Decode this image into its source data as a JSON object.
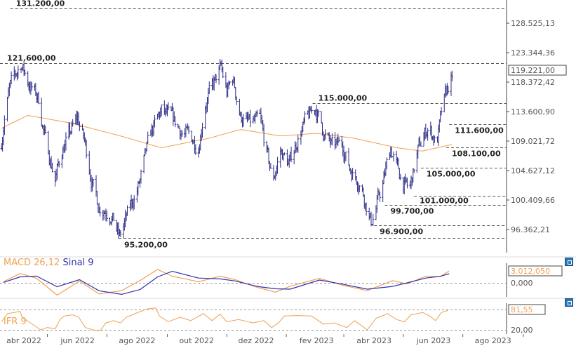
{
  "chart_data": [
    {
      "type": "ohlc",
      "y_scale": "log",
      "y_ticks": [
        "128.525,13",
        "123.344,36",
        "118.372,42",
        "113.600,90",
        "109.021,72",
        "104.627,12",
        "100.409,66",
        "96.362,21"
      ],
      "y_tick_values": [
        128525.13,
        123344.36,
        118372.42,
        113600.9,
        109021.72,
        104627.12,
        100409.66,
        96362.21
      ],
      "last_price_label": "119.221,00",
      "colors": {
        "price": "#2b2b85",
        "ma": "#f0a050",
        "levels": "#555555"
      },
      "levels": [
        {
          "value": 131200,
          "label": "131.200,00",
          "from": "2022-03-24"
        },
        {
          "value": 121600,
          "label": "121.600,00",
          "from": "2022-03-12"
        },
        {
          "value": 115000,
          "label": "115.000,00",
          "from": "2023-01-28"
        },
        {
          "value": 111600,
          "label": "111.600,00",
          "from": "2023-06-17"
        },
        {
          "value": 108100,
          "label": "108.100,00",
          "from": "2023-06-14"
        },
        {
          "value": 105000,
          "label": "105.000,00",
          "from": "2023-05-19"
        },
        {
          "value": 101000,
          "label": "101.000,00",
          "from": "2023-05-12"
        },
        {
          "value": 99700,
          "label": "99.700,00",
          "from": "2023-04-12"
        },
        {
          "value": 96900,
          "label": "96.900,00",
          "from": "2023-04-01"
        },
        {
          "value": 95200,
          "label": "95.200,00",
          "from": "2022-07-13"
        }
      ],
      "price_path": [
        [
          "2022-03-15",
          109000
        ],
        [
          "2022-03-18",
          113000
        ],
        [
          "2022-03-23",
          117000
        ],
        [
          "2022-04-04",
          121600
        ],
        [
          "2022-04-11",
          118500
        ],
        [
          "2022-04-22",
          115500
        ],
        [
          "2022-04-29",
          109000
        ],
        [
          "2022-05-09",
          103500
        ],
        [
          "2022-05-17",
          108000
        ],
        [
          "2022-06-01",
          112500
        ],
        [
          "2022-06-08",
          109000
        ],
        [
          "2022-06-16",
          103000
        ],
        [
          "2022-06-22",
          99800
        ],
        [
          "2022-07-05",
          98800
        ],
        [
          "2022-07-14",
          95200
        ],
        [
          "2022-07-25",
          99300
        ],
        [
          "2022-08-04",
          103000
        ],
        [
          "2022-08-15",
          110000
        ],
        [
          "2022-08-26",
          113600
        ],
        [
          "2022-09-06",
          112200
        ],
        [
          "2022-09-16",
          110500
        ],
        [
          "2022-10-03",
          108500
        ],
        [
          "2022-10-10",
          115300
        ],
        [
          "2022-10-16",
          117000
        ],
        [
          "2022-10-26",
          120500
        ],
        [
          "2022-11-01",
          116500
        ],
        [
          "2022-11-07",
          119000
        ],
        [
          "2022-11-15",
          113000
        ],
        [
          "2022-11-25",
          111500
        ],
        [
          "2022-12-05",
          112000
        ],
        [
          "2022-12-18",
          103000
        ],
        [
          "2022-12-26",
          107500
        ],
        [
          "2023-01-04",
          105500
        ],
        [
          "2023-01-15",
          110500
        ],
        [
          "2023-01-31",
          114200
        ],
        [
          "2023-02-08",
          110500
        ],
        [
          "2023-02-17",
          108000
        ],
        [
          "2023-02-28",
          108500
        ],
        [
          "2023-03-07",
          105000
        ],
        [
          "2023-03-18",
          103000
        ],
        [
          "2023-03-29",
          97300
        ],
        [
          "2023-04-09",
          102000
        ],
        [
          "2023-04-18",
          108000
        ],
        [
          "2023-04-27",
          104000
        ],
        [
          "2023-05-07",
          101500
        ],
        [
          "2023-05-16",
          107500
        ],
        [
          "2023-05-27",
          111500
        ],
        [
          "2023-06-04",
          108500
        ],
        [
          "2023-06-09",
          113000
        ],
        [
          "2023-06-15",
          117000
        ],
        [
          "2023-06-20",
          119221
        ]
      ],
      "moving_average": [
        [
          "2022-03-15",
          111000
        ],
        [
          "2022-04-11",
          113000
        ],
        [
          "2022-05-25",
          111800
        ],
        [
          "2022-07-15",
          109800
        ],
        [
          "2022-08-26",
          108000
        ],
        [
          "2022-10-15",
          109500
        ],
        [
          "2022-11-15",
          110800
        ],
        [
          "2022-12-26",
          109800
        ],
        [
          "2023-02-01",
          110200
        ],
        [
          "2023-03-10",
          109500
        ],
        [
          "2023-04-25",
          108000
        ],
        [
          "2023-05-20",
          107500
        ],
        [
          "2023-06-20",
          108500
        ]
      ]
    },
    {
      "type": "line",
      "title": "MACD 26,12",
      "title2": "Sinal 9",
      "y_ticks": [
        "0,000"
      ],
      "last_value_label": "3.012,050",
      "colors": {
        "macd": "#f0a050",
        "signal": "#3030b0"
      },
      "series": [
        {
          "name": "MACD 26,12",
          "points": [
            [
              "2022-03-17",
              280
            ],
            [
              "2022-04-03",
              2360
            ],
            [
              "2022-04-20",
              1130
            ],
            [
              "2022-05-11",
              -3100
            ],
            [
              "2022-06-03",
              450
            ],
            [
              "2022-06-23",
              -2800
            ],
            [
              "2022-07-16",
              -1970
            ],
            [
              "2022-08-04",
              560
            ],
            [
              "2022-08-22",
              3380
            ],
            [
              "2022-09-06",
              1690
            ],
            [
              "2022-10-03",
              280
            ],
            [
              "2022-10-25",
              1690
            ],
            [
              "2022-11-09",
              845
            ],
            [
              "2022-12-02",
              -1130
            ],
            [
              "2022-12-21",
              -2360
            ],
            [
              "2023-01-05",
              -845
            ],
            [
              "2023-02-04",
              1130
            ],
            [
              "2023-02-27",
              -560
            ],
            [
              "2023-03-25",
              -1970
            ],
            [
              "2023-04-20",
              560
            ],
            [
              "2023-05-05",
              -280
            ],
            [
              "2023-05-24",
              1690
            ],
            [
              "2023-06-08",
              1580
            ],
            [
              "2023-06-17",
              3012
            ]
          ]
        },
        {
          "name": "Sinal 9",
          "points": [
            [
              "2022-03-17",
              100
            ],
            [
              "2022-04-03",
              1500
            ],
            [
              "2022-04-20",
              1700
            ],
            [
              "2022-05-11",
              -1000
            ],
            [
              "2022-06-03",
              800
            ],
            [
              "2022-06-23",
              -2000
            ],
            [
              "2022-07-16",
              -2900
            ],
            [
              "2022-08-04",
              -1700
            ],
            [
              "2022-08-22",
              1500
            ],
            [
              "2022-09-06",
              2900
            ],
            [
              "2022-10-03",
              1200
            ],
            [
              "2022-10-25",
              1000
            ],
            [
              "2022-11-09",
              500
            ],
            [
              "2022-12-02",
              -900
            ],
            [
              "2022-12-21",
              -1500
            ],
            [
              "2023-01-05",
              -1600
            ],
            [
              "2023-02-04",
              700
            ],
            [
              "2023-02-27",
              -300
            ],
            [
              "2023-03-25",
              -1600
            ],
            [
              "2023-04-20",
              -900
            ],
            [
              "2023-05-05",
              0
            ],
            [
              "2023-05-24",
              1200
            ],
            [
              "2023-06-08",
              1650
            ],
            [
              "2023-06-17",
              2300
            ]
          ]
        }
      ]
    },
    {
      "type": "line",
      "title": "IFR 9",
      "y_ticks": [
        "20,00"
      ],
      "reference_lines": [
        20,
        81.55
      ],
      "last_value_label": "81,55",
      "colors": {
        "rsi": "#f0a050"
      },
      "points": [
        [
          "2022-03-15",
          45.3
        ],
        [
          "2022-03-21",
          70.7
        ],
        [
          "2022-04-03",
          77.9
        ],
        [
          "2022-04-05",
          59.8
        ],
        [
          "2022-04-12",
          45.3
        ],
        [
          "2022-04-24",
          20
        ],
        [
          "2022-05-01",
          27.2
        ],
        [
          "2022-05-09",
          23.6
        ],
        [
          "2022-05-14",
          52.6
        ],
        [
          "2022-05-18",
          63.4
        ],
        [
          "2022-05-27",
          67.1
        ],
        [
          "2022-06-02",
          59.8
        ],
        [
          "2022-06-09",
          27.2
        ],
        [
          "2022-06-17",
          20
        ],
        [
          "2022-06-24",
          16.4
        ],
        [
          "2022-06-30",
          41.7
        ],
        [
          "2022-07-08",
          49
        ],
        [
          "2022-07-15",
          41.7
        ],
        [
          "2022-07-21",
          59.8
        ],
        [
          "2022-07-30",
          70.7
        ],
        [
          "2022-08-11",
          85.2
        ],
        [
          "2022-08-20",
          88.8
        ],
        [
          "2022-08-24",
          63.4
        ],
        [
          "2022-09-02",
          45.3
        ],
        [
          "2022-09-14",
          59.8
        ],
        [
          "2022-09-25",
          49
        ],
        [
          "2022-10-08",
          70.7
        ],
        [
          "2022-10-17",
          49
        ],
        [
          "2022-10-25",
          69.2
        ],
        [
          "2022-11-01",
          45.3
        ],
        [
          "2022-11-13",
          52.6
        ],
        [
          "2022-11-28",
          41.7
        ],
        [
          "2022-12-09",
          49
        ],
        [
          "2022-12-17",
          27.2
        ],
        [
          "2022-12-24",
          41.7
        ],
        [
          "2022-12-30",
          63.4
        ],
        [
          "2023-01-12",
          64.9
        ],
        [
          "2023-01-27",
          63.4
        ],
        [
          "2023-02-08",
          38.1
        ],
        [
          "2023-02-19",
          41.7
        ],
        [
          "2023-03-04",
          27.2
        ],
        [
          "2023-03-12",
          49
        ],
        [
          "2023-03-25",
          20
        ],
        [
          "2023-04-03",
          56.2
        ],
        [
          "2023-04-15",
          70.7
        ],
        [
          "2023-04-24",
          52.6
        ],
        [
          "2023-05-02",
          45.3
        ],
        [
          "2023-05-09",
          67.1
        ],
        [
          "2023-05-21",
          74.3
        ],
        [
          "2023-05-28",
          63.4
        ],
        [
          "2023-06-03",
          49
        ],
        [
          "2023-06-09",
          74.3
        ],
        [
          "2023-06-16",
          81.55
        ]
      ]
    }
  ],
  "x_axis": {
    "labels": [
      "abr 2022",
      "jun 2022",
      "ago 2022",
      "out 2022",
      "dez 2022",
      "fev 2023",
      "abr 2023",
      "jun 2023",
      "ago 2023"
    ],
    "dates": [
      "2022-04-01",
      "2022-06-01",
      "2022-08-01",
      "2022-10-01",
      "2022-12-01",
      "2023-02-01",
      "2023-04-01",
      "2023-06-01",
      "2023-08-01"
    ],
    "ticks": [
      "2022-05-01",
      "2022-07-01",
      "2022-09-01",
      "2022-11-01",
      "2023-01-01",
      "2023-03-01",
      "2023-05-01",
      "2023-07-01",
      "2023-09-01"
    ]
  },
  "panel_icons": [
    "popout-icon",
    "popout-icon"
  ]
}
